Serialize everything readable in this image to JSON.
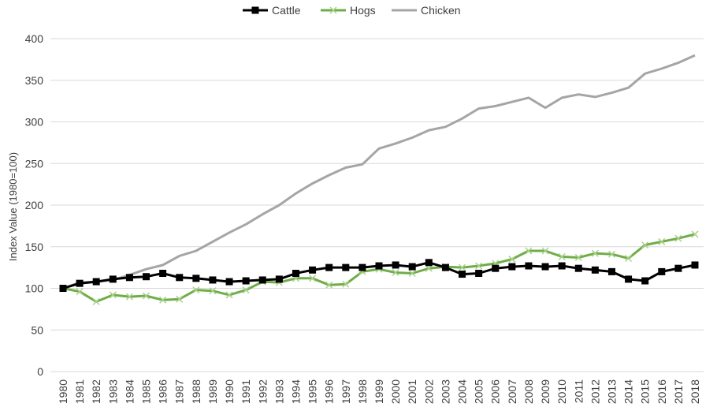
{
  "chart_data": {
    "type": "line",
    "title": "",
    "xlabel": "",
    "ylabel": "Index Value (1980=100)",
    "ylim": [
      0,
      400
    ],
    "yticks": [
      0,
      50,
      100,
      150,
      200,
      250,
      300,
      350,
      400
    ],
    "grid": "horizontal",
    "legend_position": "top",
    "x": [
      "1980",
      "1981",
      "1982",
      "1983",
      "1984",
      "1985",
      "1986",
      "1987",
      "1988",
      "1989",
      "1990",
      "1991",
      "1992",
      "1993",
      "1994",
      "1995",
      "1996",
      "1997",
      "1998",
      "1999",
      "2000",
      "2001",
      "2002",
      "2003",
      "2004",
      "2005",
      "2006",
      "2007",
      "2008",
      "2009",
      "2010",
      "2011",
      "2012",
      "2013",
      "2014",
      "2015",
      "2016",
      "2017",
      "2018"
    ],
    "series": [
      {
        "name": "Cattle",
        "color": "#000000",
        "marker": "square",
        "values": [
          100,
          106,
          108,
          111,
          113,
          114,
          118,
          113,
          112,
          110,
          108,
          109,
          110,
          111,
          118,
          122,
          125,
          125,
          125,
          127,
          128,
          126,
          131,
          125,
          117,
          118,
          124,
          126,
          127,
          126,
          127,
          124,
          122,
          120,
          111,
          109,
          120,
          124,
          128
        ]
      },
      {
        "name": "Hogs",
        "color": "#70ad47",
        "marker": "x",
        "values": [
          100,
          96,
          84,
          92,
          90,
          91,
          86,
          87,
          98,
          97,
          92,
          98,
          108,
          107,
          112,
          112,
          104,
          105,
          120,
          123,
          119,
          118,
          124,
          126,
          125,
          127,
          130,
          135,
          145,
          145,
          138,
          137,
          142,
          141,
          136,
          152,
          156,
          160,
          165
        ]
      },
      {
        "name": "Chicken",
        "color": "#a5a5a5",
        "marker": "none",
        "values": [
          100,
          107,
          108,
          110,
          116,
          123,
          128,
          139,
          145,
          156,
          167,
          177,
          189,
          200,
          214,
          226,
          236,
          245,
          249,
          268,
          274,
          281,
          290,
          294,
          304,
          316,
          319,
          324,
          329,
          317,
          329,
          333,
          330,
          335,
          341,
          358,
          364,
          371,
          380
        ]
      }
    ]
  }
}
